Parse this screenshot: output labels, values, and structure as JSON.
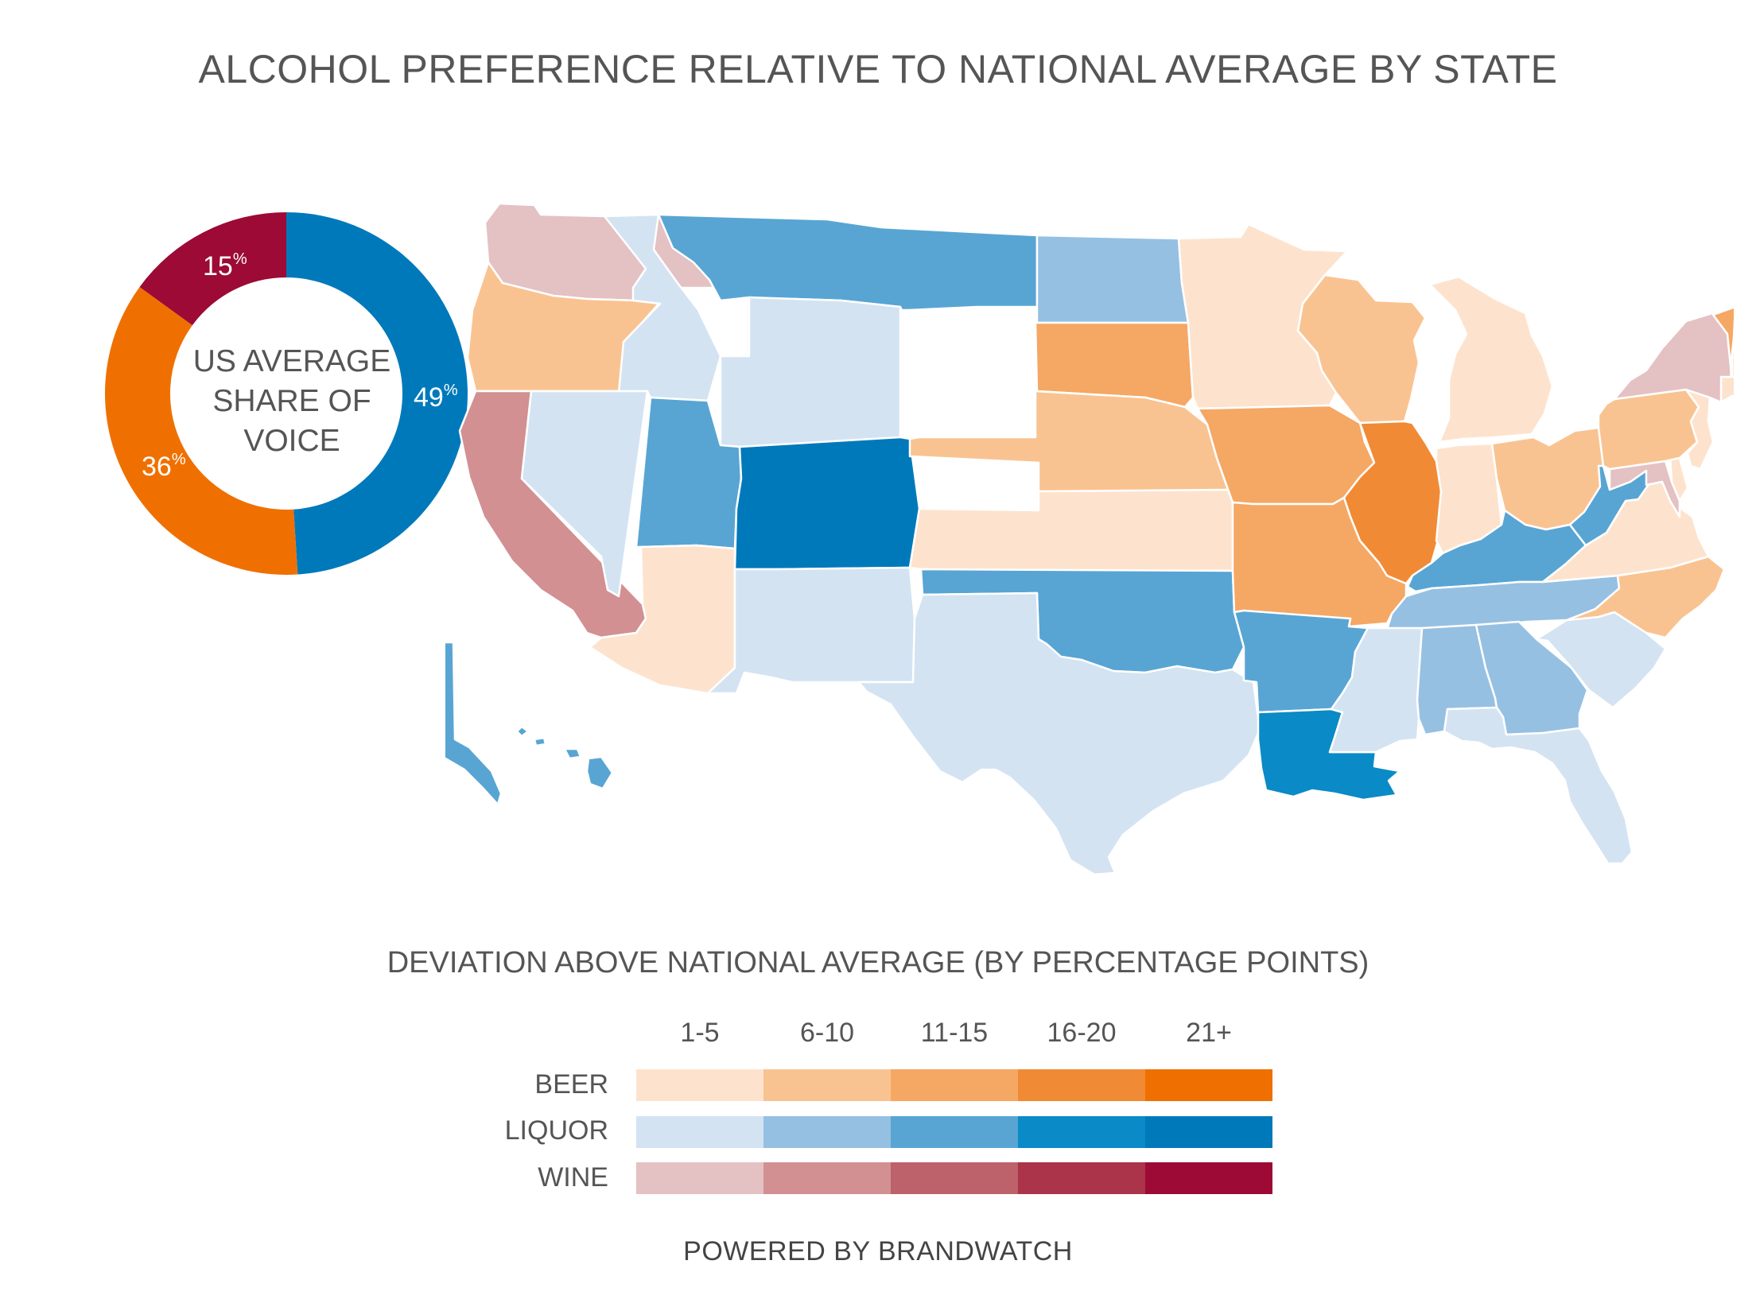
{
  "title": "ALCOHOL PREFERENCE RELATIVE TO NATIONAL AVERAGE BY STATE",
  "donut": {
    "center_lines": [
      "US AVERAGE",
      "SHARE OF",
      "VOICE"
    ],
    "slices": [
      {
        "key": "liquor",
        "value": 49,
        "label": "49",
        "color": "#0079bb"
      },
      {
        "key": "beer",
        "value": 36,
        "label": "36",
        "color": "#ef7000"
      },
      {
        "key": "wine",
        "value": 15,
        "label": "15",
        "color": "#9c0a35"
      }
    ],
    "percent_sign": "%"
  },
  "legend": {
    "title": "DEVIATION ABOVE NATIONAL AVERAGE (BY PERCENTAGE POINTS)",
    "ranges": [
      "1-5",
      "6-10",
      "11-15",
      "16-20",
      "21+"
    ],
    "rows": [
      {
        "label": "BEER",
        "colors": [
          "#fde3cd",
          "#f9c391",
          "#f5a764",
          "#f18a35",
          "#ef7000"
        ]
      },
      {
        "label": "LIQUOR",
        "colors": [
          "#d3e3f2",
          "#96c0e2",
          "#58a5d4",
          "#0a8ac6",
          "#0079bb"
        ]
      },
      {
        "label": "WINE",
        "colors": [
          "#e4c1c2",
          "#d29092",
          "#bd616a",
          "#ab334a",
          "#9c0a35"
        ]
      }
    ]
  },
  "states": [
    {
      "id": "WA",
      "level": "wine-1",
      "color": "#e4c1c2"
    },
    {
      "id": "OR",
      "level": "beer-2",
      "color": "#f9c391"
    },
    {
      "id": "CA",
      "level": "wine-2",
      "color": "#d29092"
    },
    {
      "id": "ID",
      "level": "liquor-1",
      "color": "#d3e3f2"
    },
    {
      "id": "NV",
      "level": "liquor-1",
      "color": "#d3e3f2"
    },
    {
      "id": "MT",
      "level": "liquor-3",
      "color": "#58a5d4"
    },
    {
      "id": "WY",
      "level": "liquor-1",
      "color": "#d3e3f2"
    },
    {
      "id": "UT",
      "level": "liquor-3",
      "color": "#58a5d4"
    },
    {
      "id": "AZ",
      "level": "beer-1",
      "color": "#fde3cd"
    },
    {
      "id": "CO",
      "level": "liquor-5",
      "color": "#0079bb"
    },
    {
      "id": "NM",
      "level": "liquor-1",
      "color": "#d3e3f2"
    },
    {
      "id": "ND",
      "level": "liquor-2",
      "color": "#96c0e2"
    },
    {
      "id": "SD",
      "level": "beer-3",
      "color": "#f5a764"
    },
    {
      "id": "NE",
      "level": "beer-2",
      "color": "#f9c391"
    },
    {
      "id": "KS",
      "level": "beer-1",
      "color": "#fde3cd"
    },
    {
      "id": "OK",
      "level": "liquor-3",
      "color": "#58a5d4"
    },
    {
      "id": "TX",
      "level": "liquor-1",
      "color": "#d3e3f2"
    },
    {
      "id": "MN",
      "level": "beer-1",
      "color": "#fde3cd"
    },
    {
      "id": "IA",
      "level": "beer-3",
      "color": "#f5a764"
    },
    {
      "id": "MO",
      "level": "beer-3",
      "color": "#f5a764"
    },
    {
      "id": "AR",
      "level": "liquor-3",
      "color": "#58a5d4"
    },
    {
      "id": "LA",
      "level": "liquor-4",
      "color": "#0a8ac6"
    },
    {
      "id": "WI",
      "level": "beer-2",
      "color": "#f9c391"
    },
    {
      "id": "IL",
      "level": "beer-4",
      "color": "#f18a35"
    },
    {
      "id": "MI",
      "level": "beer-1",
      "color": "#fde3cd"
    },
    {
      "id": "IN",
      "level": "beer-1",
      "color": "#fde3cd"
    },
    {
      "id": "OH",
      "level": "beer-2",
      "color": "#f9c391"
    },
    {
      "id": "KY",
      "level": "liquor-3",
      "color": "#58a5d4"
    },
    {
      "id": "TN",
      "level": "liquor-2",
      "color": "#96c0e2"
    },
    {
      "id": "MS",
      "level": "liquor-1",
      "color": "#d3e3f2"
    },
    {
      "id": "AL",
      "level": "liquor-2",
      "color": "#96c0e2"
    },
    {
      "id": "GA",
      "level": "liquor-2",
      "color": "#96c0e2"
    },
    {
      "id": "FL",
      "level": "liquor-1",
      "color": "#d3e3f2"
    },
    {
      "id": "SC",
      "level": "liquor-1",
      "color": "#d3e3f2"
    },
    {
      "id": "NC",
      "level": "beer-2",
      "color": "#f9c391"
    },
    {
      "id": "VA",
      "level": "beer-1",
      "color": "#fde3cd"
    },
    {
      "id": "WV",
      "level": "liquor-3",
      "color": "#58a5d4"
    },
    {
      "id": "MD",
      "level": "wine-1",
      "color": "#e4c1c2"
    },
    {
      "id": "DE",
      "level": "beer-1",
      "color": "#fde3cd"
    },
    {
      "id": "PA",
      "level": "beer-2",
      "color": "#f9c391"
    },
    {
      "id": "NJ",
      "level": "beer-1",
      "color": "#fde3cd"
    },
    {
      "id": "NY",
      "level": "wine-1",
      "color": "#e4c1c2"
    },
    {
      "id": "VT",
      "level": "beer-3",
      "color": "#f5a764"
    },
    {
      "id": "NH",
      "level": "beer-1",
      "color": "#fde3cd"
    },
    {
      "id": "ME",
      "level": "tie-beer-liquor",
      "color": "#d3e3f2"
    },
    {
      "id": "MA",
      "level": "beer-1",
      "color": "#fde3cd"
    },
    {
      "id": "CT",
      "level": "beer-1",
      "color": "#fde3cd"
    },
    {
      "id": "RI",
      "level": "liquor-1",
      "color": "#d3e3f2"
    },
    {
      "id": "AK",
      "level": "liquor-3",
      "color": "#58a5d4"
    },
    {
      "id": "HI",
      "level": "liquor-3",
      "color": "#58a5d4"
    }
  ],
  "footer": "POWERED BY BRANDWATCH"
}
